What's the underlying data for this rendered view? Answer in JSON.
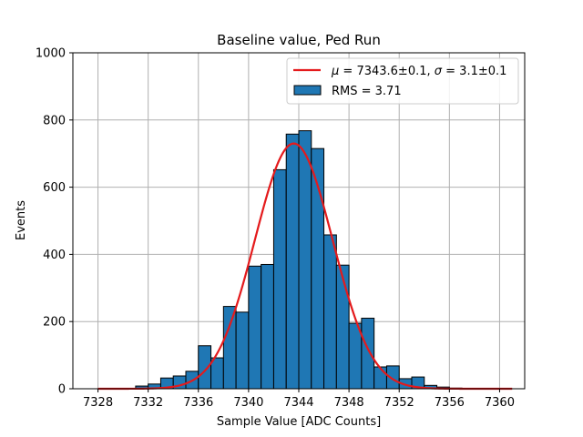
{
  "chart_data": {
    "type": "bar",
    "title": "Baseline value, Ped Run",
    "xlabel": "Sample Value [ADC Counts]",
    "ylabel": "Events",
    "xlim": [
      7326,
      7362
    ],
    "ylim": [
      0,
      1000
    ],
    "xticks": [
      7328,
      7332,
      7336,
      7340,
      7344,
      7348,
      7352,
      7356,
      7360
    ],
    "yticks": [
      0,
      200,
      400,
      600,
      800,
      1000
    ],
    "grid": true,
    "legend_position": "top-right",
    "colors": {
      "bars": "#1f77b4",
      "bar_edge": "#000000",
      "fit": "#e41a1c"
    },
    "histogram": {
      "name": "RMS = 3.71",
      "bin_width": 1,
      "bin_edges_start": 7331,
      "values": [
        8,
        14,
        32,
        38,
        52,
        128,
        92,
        245,
        228,
        365,
        370,
        652,
        758,
        768,
        715,
        458,
        368,
        195,
        210,
        65,
        68,
        30,
        35,
        10,
        5,
        2
      ]
    },
    "fit": {
      "name_mu": "μ",
      "name_mid": " = 7343.6±0.1, ",
      "name_sigma": "σ",
      "name_end": " = 3.1±0.1",
      "mu": 7343.6,
      "sigma": 3.1,
      "amplitude": 730,
      "x_range": [
        7328,
        7361
      ]
    }
  }
}
